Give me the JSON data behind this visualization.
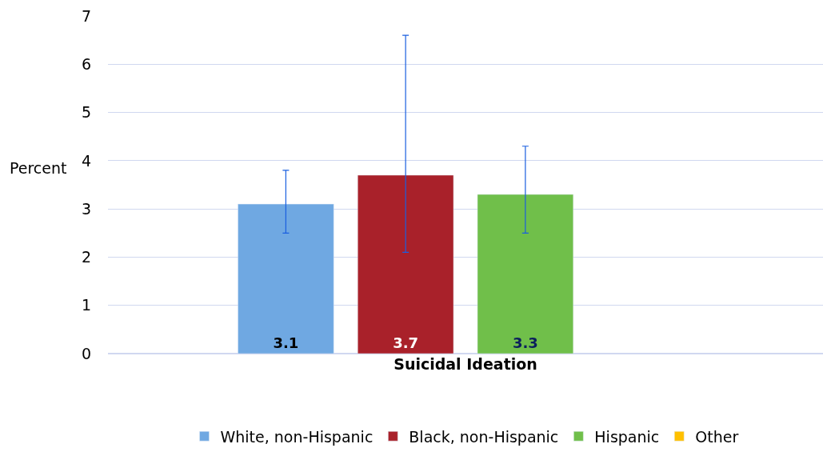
{
  "chart_data": {
    "type": "bar",
    "ylabel": "Percent",
    "categories": [
      "Suicidal Ideation"
    ],
    "series": [
      {
        "name": "White, non-Hispanic",
        "color": "#6fa8e2",
        "values": [
          3.1
        ],
        "errors": [
          [
            2.5,
            3.8
          ]
        ]
      },
      {
        "name": "Black, non-Hispanic",
        "color": "#a9212a",
        "values": [
          3.7
        ],
        "errors": [
          [
            2.1,
            6.6
          ]
        ]
      },
      {
        "name": "Hispanic",
        "color": "#70bf4a",
        "values": [
          3.3
        ],
        "errors": [
          [
            2.5,
            4.3
          ]
        ]
      },
      {
        "name": "Other",
        "color": "#ffc000",
        "values": [
          null
        ]
      }
    ],
    "ylim": [
      0,
      7
    ],
    "yticks": [
      0,
      1,
      2,
      3,
      4,
      5,
      6,
      7
    ],
    "grid": "y",
    "legend": "bottom",
    "data_labels": true
  }
}
